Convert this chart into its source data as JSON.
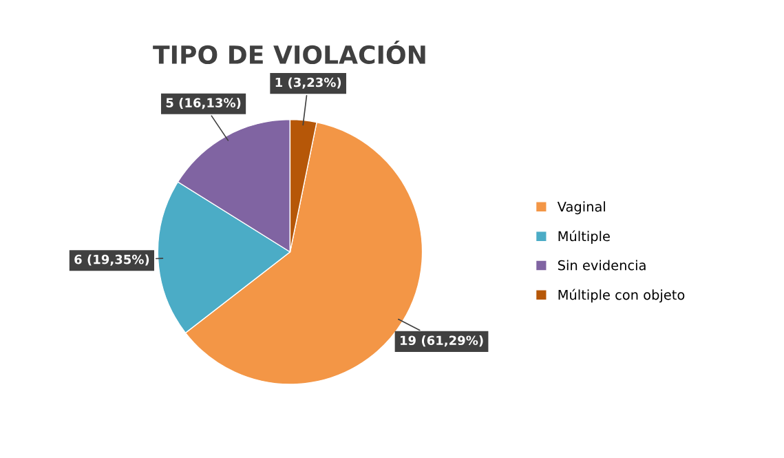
{
  "chart_data": {
    "type": "pie",
    "title": "TIPO DE VIOLACIÓN",
    "categories": [
      "Vaginal",
      "Múltiple",
      "Sin evidencia",
      "Múltiple con objeto"
    ],
    "values": [
      19,
      6,
      5,
      1
    ],
    "colors": [
      "#f39646",
      "#4bacc6",
      "#8064a2",
      "#b65708"
    ],
    "value_labels": [
      "19 (61,29%)",
      "6 (19,35%)",
      "5 (16,13%)",
      "1 (3,23%)"
    ],
    "legend": "right"
  }
}
